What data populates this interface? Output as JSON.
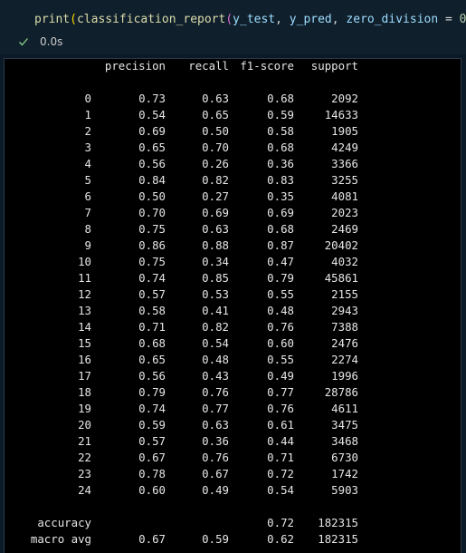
{
  "code": {
    "fn_print": "print",
    "fn_report": "classification_report",
    "arg1": "y_test",
    "arg2": "y_pred",
    "kwarg": "zero_division",
    "kwval": "0"
  },
  "status": {
    "time": "0.0s",
    "success_color": "#89d185"
  },
  "report": {
    "headers": [
      "precision",
      "recall",
      "f1-score",
      "support"
    ],
    "rows": [
      [
        "0",
        "0.73",
        "0.63",
        "0.68",
        "2092"
      ],
      [
        "1",
        "0.54",
        "0.65",
        "0.59",
        "14633"
      ],
      [
        "2",
        "0.69",
        "0.50",
        "0.58",
        "1905"
      ],
      [
        "3",
        "0.65",
        "0.70",
        "0.68",
        "4249"
      ],
      [
        "4",
        "0.56",
        "0.26",
        "0.36",
        "3366"
      ],
      [
        "5",
        "0.84",
        "0.82",
        "0.83",
        "3255"
      ],
      [
        "6",
        "0.50",
        "0.27",
        "0.35",
        "4081"
      ],
      [
        "7",
        "0.70",
        "0.69",
        "0.69",
        "2023"
      ],
      [
        "8",
        "0.75",
        "0.63",
        "0.68",
        "2469"
      ],
      [
        "9",
        "0.86",
        "0.88",
        "0.87",
        "20402"
      ],
      [
        "10",
        "0.75",
        "0.34",
        "0.47",
        "4032"
      ],
      [
        "11",
        "0.74",
        "0.85",
        "0.79",
        "45861"
      ],
      [
        "12",
        "0.57",
        "0.53",
        "0.55",
        "2155"
      ],
      [
        "13",
        "0.58",
        "0.41",
        "0.48",
        "2943"
      ],
      [
        "14",
        "0.71",
        "0.82",
        "0.76",
        "7388"
      ],
      [
        "15",
        "0.68",
        "0.54",
        "0.60",
        "2476"
      ],
      [
        "16",
        "0.65",
        "0.48",
        "0.55",
        "2274"
      ],
      [
        "17",
        "0.56",
        "0.43",
        "0.49",
        "1996"
      ],
      [
        "18",
        "0.79",
        "0.76",
        "0.77",
        "28786"
      ],
      [
        "19",
        "0.74",
        "0.77",
        "0.76",
        "4611"
      ],
      [
        "20",
        "0.59",
        "0.63",
        "0.61",
        "3475"
      ],
      [
        "21",
        "0.57",
        "0.36",
        "0.44",
        "3468"
      ],
      [
        "22",
        "0.67",
        "0.76",
        "0.71",
        "6730"
      ],
      [
        "23",
        "0.78",
        "0.67",
        "0.72",
        "1742"
      ],
      [
        "24",
        "0.60",
        "0.49",
        "0.54",
        "5903"
      ]
    ],
    "summary": [
      [
        "accuracy",
        "",
        "",
        "0.72",
        "182315"
      ],
      [
        "macro avg",
        "0.67",
        "0.59",
        "0.62",
        "182315"
      ]
    ]
  }
}
